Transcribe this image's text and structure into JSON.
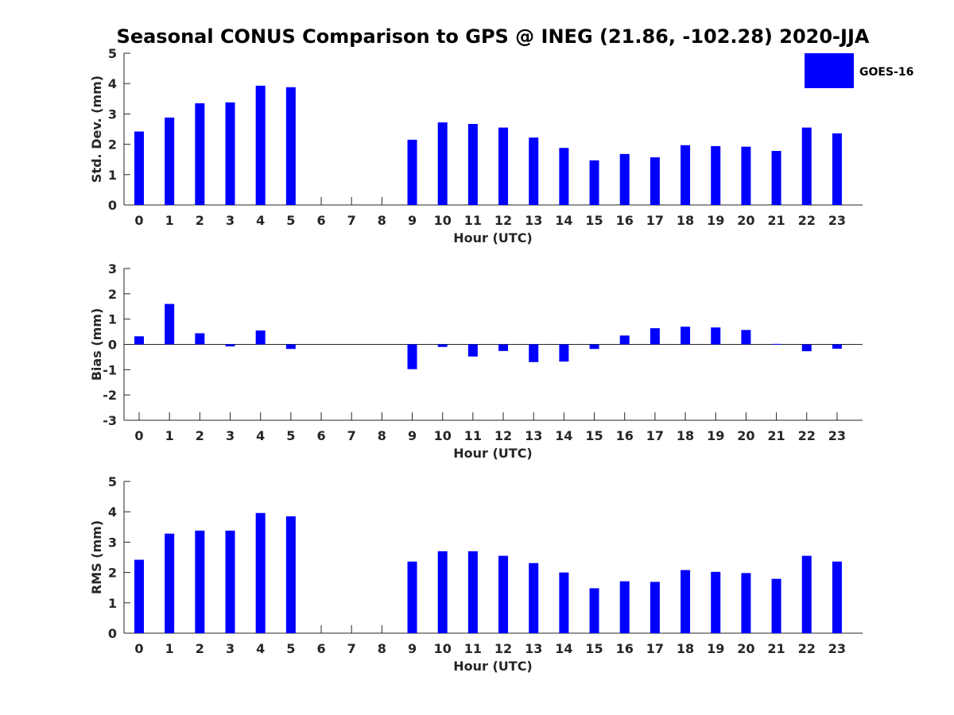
{
  "title": "Seasonal CONUS Comparison to GPS @ INEG (21.86, -102.28) 2020-JJA",
  "legend": {
    "label": "GOES-16",
    "color": "#0000ff",
    "placement": "top-right"
  },
  "chart_data": [
    {
      "type": "bar",
      "title": "Seasonal CONUS Comparison to GPS @ INEG (21.86, -102.28) 2020-JJA",
      "xlabel": "Hour (UTC)",
      "ylabel": "Std. Dev. (mm)",
      "ylim": [
        0,
        5
      ],
      "yticks": [
        "0",
        "1",
        "2",
        "3",
        "4",
        "5"
      ],
      "categories": [
        "0",
        "1",
        "2",
        "3",
        "4",
        "5",
        "6",
        "7",
        "8",
        "9",
        "10",
        "11",
        "12",
        "13",
        "14",
        "15",
        "16",
        "17",
        "18",
        "19",
        "20",
        "21",
        "22",
        "23"
      ],
      "series": [
        {
          "name": "GOES-16",
          "color": "#0000ff",
          "values": [
            2.42,
            2.88,
            3.35,
            3.38,
            3.93,
            3.88,
            null,
            null,
            null,
            2.15,
            2.72,
            2.67,
            2.55,
            2.22,
            1.88,
            1.47,
            1.68,
            1.57,
            1.97,
            1.94,
            1.92,
            1.78,
            2.55,
            2.36
          ]
        }
      ]
    },
    {
      "type": "bar",
      "xlabel": "Hour (UTC)",
      "ylabel": "Bias (mm)",
      "ylim": [
        -3,
        3
      ],
      "yticks": [
        "-3",
        "-2",
        "-1",
        "0",
        "1",
        "2",
        "3"
      ],
      "categories": [
        "0",
        "1",
        "2",
        "3",
        "4",
        "5",
        "6",
        "7",
        "8",
        "9",
        "10",
        "11",
        "12",
        "13",
        "14",
        "15",
        "16",
        "17",
        "18",
        "19",
        "20",
        "21",
        "22",
        "23"
      ],
      "series": [
        {
          "name": "GOES-16",
          "color": "#0000ff",
          "values": [
            0.32,
            1.6,
            0.44,
            -0.08,
            0.55,
            -0.18,
            null,
            null,
            null,
            -0.98,
            -0.1,
            -0.48,
            -0.26,
            -0.7,
            -0.68,
            -0.18,
            0.35,
            0.64,
            0.7,
            0.67,
            0.57,
            0.02,
            -0.27,
            -0.17
          ]
        }
      ]
    },
    {
      "type": "bar",
      "xlabel": "Hour (UTC)",
      "ylabel": "RMS (mm)",
      "ylim": [
        0,
        5
      ],
      "yticks": [
        "0",
        "1",
        "2",
        "3",
        "4",
        "5"
      ],
      "categories": [
        "0",
        "1",
        "2",
        "3",
        "4",
        "5",
        "6",
        "7",
        "8",
        "9",
        "10",
        "11",
        "12",
        "13",
        "14",
        "15",
        "16",
        "17",
        "18",
        "19",
        "20",
        "21",
        "22",
        "23"
      ],
      "series": [
        {
          "name": "GOES-16",
          "color": "#0000ff",
          "values": [
            2.42,
            3.28,
            3.38,
            3.38,
            3.96,
            3.85,
            null,
            null,
            null,
            2.36,
            2.7,
            2.7,
            2.55,
            2.31,
            2.0,
            1.48,
            1.71,
            1.69,
            2.08,
            2.02,
            1.98,
            1.79,
            2.55,
            2.36
          ]
        }
      ]
    }
  ]
}
